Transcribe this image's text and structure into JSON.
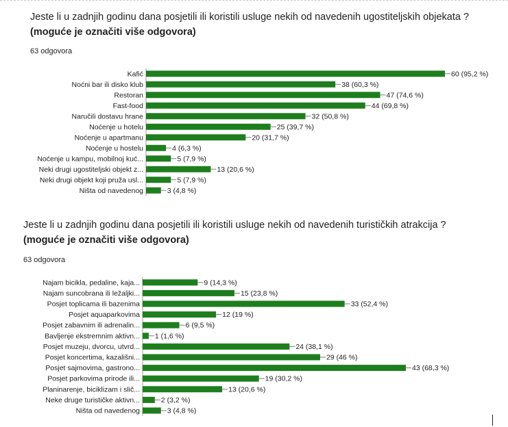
{
  "questions": [
    {
      "title_main": "Jeste li u zadnjih godinu dana posjetili ili koristili usluge nekih od navedenih ugostiteljskih objekata ?",
      "title_note": "(moguće je označiti više odgovora)",
      "response_count": "63 odgovora"
    },
    {
      "title_main": "Jeste li u zadnjih godinu dana posjetili ili koristili usluge nekih od navedenih turističkih atrakcija ?",
      "title_note": "(moguće je označiti više odgovora)",
      "response_count": "63 odgovora"
    }
  ],
  "chart_data": [
    {
      "type": "bar",
      "orientation": "horizontal",
      "bar_color": "#1e7e1e",
      "categories": [
        "Kafić",
        "Noćni bar ili disko klub",
        "Restoran",
        "Fast-food",
        "Naručili dostavu hrane",
        "Noćenje u hotelu",
        "Noćenje u apartmanu",
        "Noćenje u hostelu",
        "Noćenje u kampu, mobilnoj kuć...",
        "Neki drugi ugostiteljski objekt z...",
        "Neki drugi objekt koji pruža usl...",
        "Ništa od navedenog"
      ],
      "values": [
        60,
        38,
        47,
        44,
        32,
        25,
        20,
        4,
        5,
        13,
        5,
        3
      ],
      "labels": [
        "60 (95,2 %)",
        "38 (60,3 %)",
        "47 (74,6 %)",
        "44 (69,8 %)",
        "32 (50,8 %)",
        "25 (39,7 %)",
        "20 (31,7 %)",
        "4 (6,3 %)",
        "5 (7,9 %)",
        "13 (20,6 %)",
        "5 (7,9 %)",
        "3 (4,8 %)"
      ]
    },
    {
      "type": "bar",
      "orientation": "horizontal",
      "bar_color": "#1e7e1e",
      "categories": [
        "Najam bicikla, pedaline, kaja...",
        "Najam suncobrana ili ležaljki...",
        "Posjet toplicama ili bazenima",
        "Posjet aquaparkovima",
        "Posjet zabavnim ili adrenalin...",
        "Bavljenje ekstremnim aktivn...",
        "Posjet muzeju, dvorcu, utvrd...",
        "Posjet koncertima, kazališni...",
        "Posjet sajmovima, gastrono...",
        "Posjet parkovima prirode ili...",
        "Planinarenje, biciklizam i slič...",
        "Neke druge turističke aktivn...",
        "Ništa od navedenog"
      ],
      "values": [
        9,
        15,
        33,
        12,
        6,
        1,
        24,
        29,
        43,
        19,
        13,
        2,
        3
      ],
      "labels": [
        "9 (14,3 %)",
        "15 (23,8 %)",
        "33 (52,4 %)",
        "12 (19 %)",
        "6 (9,5 %)",
        "1 (1,6 %)",
        "24 (38,1 %)",
        "29 (46 %)",
        "43 (68,3 %)",
        "19 (30,2 %)",
        "13 (20,6 %)",
        "2 (3,2 %)",
        "3 (4,8 %)"
      ]
    }
  ]
}
